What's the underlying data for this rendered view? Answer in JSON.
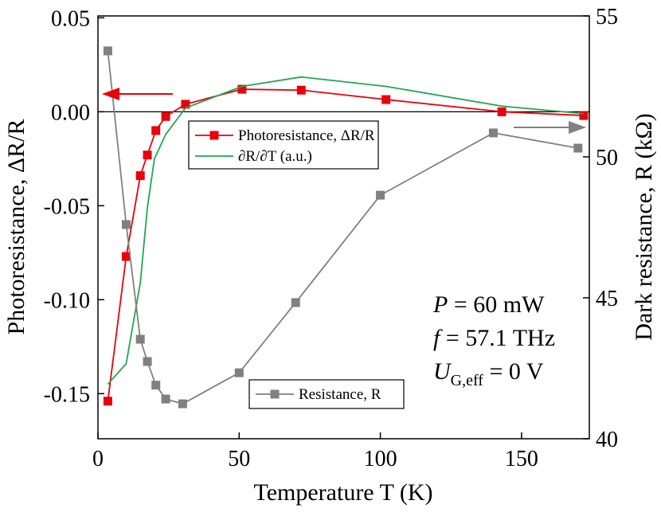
{
  "chart_data": {
    "type": "line",
    "xlabel": "Temperature T (K)",
    "ylabel": "Photoresistance, ΔR/R",
    "y2label": "Dark resistance, R (kΩ)",
    "xlim": [
      0,
      174
    ],
    "ylim": [
      -0.174,
      0.051
    ],
    "y2lim": [
      40,
      55
    ],
    "xticks": [
      0,
      50,
      100,
      150
    ],
    "yticks": [
      {
        "value": -0.15,
        "label": "-0.15"
      },
      {
        "value": -0.1,
        "label": "-0.10"
      },
      {
        "value": -0.05,
        "label": "-0.05"
      },
      {
        "value": 0,
        "label": "0.00"
      },
      {
        "value": 0.05,
        "label": "0.05"
      }
    ],
    "y2ticks": [
      40,
      45,
      50,
      55
    ],
    "series": [
      {
        "name": "Photoresistance, ΔR/R",
        "color": "#e8000b",
        "marker": "square",
        "axis": "y",
        "x": [
          3.5,
          10,
          15,
          17.5,
          20.5,
          24,
          31,
          51,
          72,
          102,
          143,
          172
        ],
        "values": [
          -0.154,
          -0.077,
          -0.034,
          -0.023,
          -0.01,
          -0.0025,
          0.004,
          0.012,
          0.0115,
          0.0065,
          0,
          -0.002
        ]
      },
      {
        "name": "∂R/∂T (a.u.)",
        "color": "#21a650",
        "marker": null,
        "axis": "y",
        "x": [
          3.5,
          10,
          15,
          17.5,
          20,
          24,
          31,
          51,
          72,
          102,
          143,
          172
        ],
        "values": [
          -0.145,
          -0.134,
          -0.091,
          -0.051,
          -0.025,
          -0.012,
          0.002,
          0.0135,
          0.0185,
          0.0135,
          0.003,
          -0.001
        ]
      },
      {
        "name": "Resistance, R",
        "color": "#808080",
        "marker": "square",
        "axis": "y2",
        "x": [
          3.5,
          10,
          15,
          17.5,
          20.5,
          24,
          30,
          50,
          70,
          100,
          140,
          170
        ],
        "values": [
          53.76,
          47.6,
          43.53,
          42.74,
          41.9,
          41.41,
          41.24,
          42.34,
          44.83,
          48.64,
          50.85,
          50.31
        ]
      }
    ],
    "annotations": [
      [
        "P",
        " = 60 mW"
      ],
      [
        "f",
        " = 57.1 THz"
      ],
      [
        "U",
        "G,eff",
        " = 0 V"
      ]
    ]
  }
}
